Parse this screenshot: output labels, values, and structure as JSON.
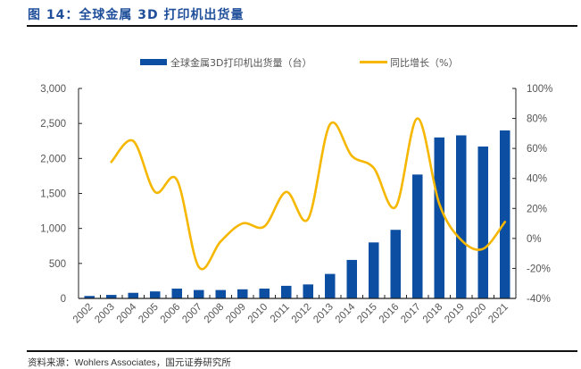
{
  "figure": {
    "title": "图 14：全球金属 3D 打印机出货量",
    "source": "资料来源：Wohlers Associates，国元证券研究所"
  },
  "colors": {
    "bar": "#0b4ea2",
    "line": "#f6b700",
    "title": "#1f4e9a",
    "axis": "#222222",
    "tick_text": "#555555"
  },
  "chart_data": {
    "type": "bar+line",
    "title": "全球金属3D打印机出货量",
    "categories": [
      "2002",
      "2003",
      "2004",
      "2005",
      "2006",
      "2007",
      "2008",
      "2009",
      "2010",
      "2011",
      "2012",
      "2013",
      "2014",
      "2015",
      "2016",
      "2017",
      "2018",
      "2019",
      "2020",
      "2021"
    ],
    "series": [
      {
        "name": "全球金属3D打印机出货量（台）",
        "type": "bar",
        "axis": "left",
        "values": [
          35,
          50,
          80,
          100,
          140,
          120,
          120,
          130,
          140,
          180,
          200,
          350,
          550,
          800,
          980,
          1770,
          2300,
          2330,
          2170,
          2400
        ]
      },
      {
        "name": "同比增长（%）",
        "type": "line",
        "axis": "right",
        "values": [
          null,
          51,
          65,
          31,
          39,
          -19,
          -2,
          10,
          8,
          31,
          13,
          76,
          55,
          47,
          21,
          80,
          23,
          -1,
          -7,
          11
        ]
      }
    ],
    "left_axis": {
      "ylim": [
        0,
        3000
      ],
      "ticks": [
        0,
        500,
        1000,
        1500,
        2000,
        2500,
        3000
      ],
      "tick_labels": [
        "0",
        "500",
        "1,000",
        "1,500",
        "2,000",
        "2,500",
        "3,000"
      ]
    },
    "right_axis": {
      "ylim": [
        -40,
        100
      ],
      "ticks": [
        -40,
        -20,
        0,
        20,
        40,
        60,
        80,
        100
      ],
      "tick_labels": [
        "-40%",
        "-20%",
        "0%",
        "20%",
        "40%",
        "60%",
        "80%",
        "100%"
      ]
    },
    "xlabel": "",
    "ylabel": "",
    "grid": false,
    "legend_position": "top",
    "x_tick_rotation": "-45deg"
  }
}
